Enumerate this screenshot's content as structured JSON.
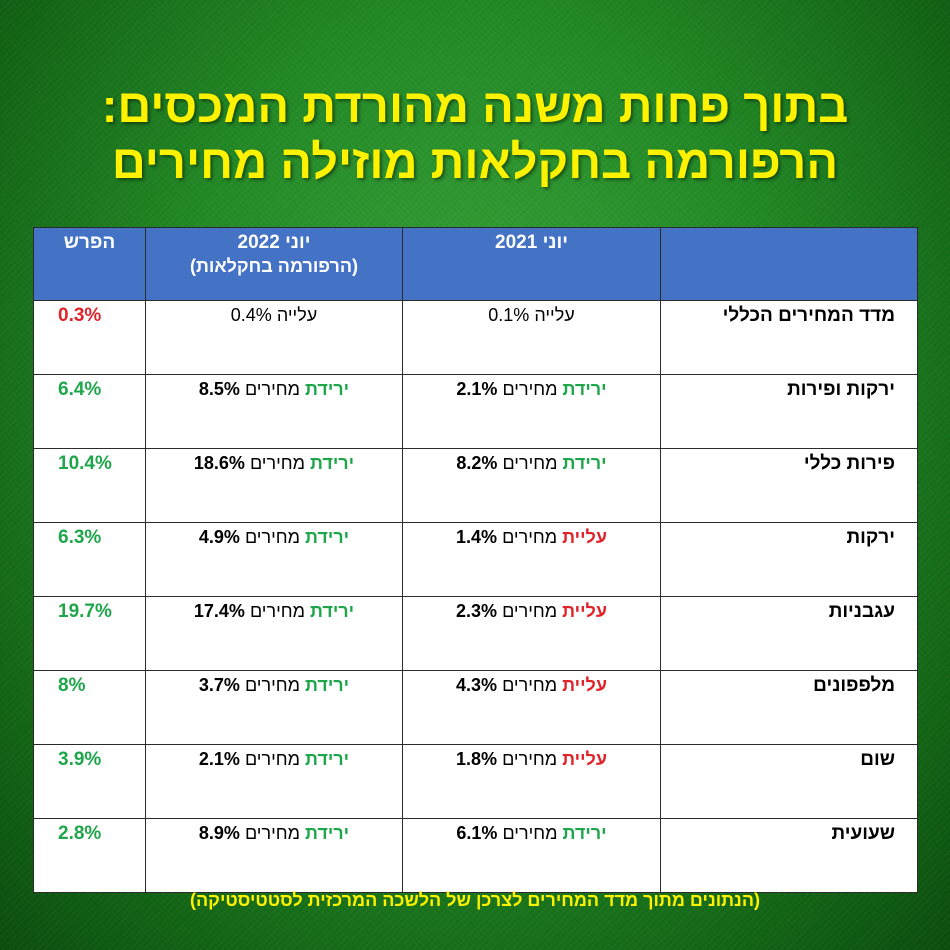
{
  "headline": {
    "line1": "בתוך פחות משנה מהורדת המכסים:",
    "line2": "הרפורמה בחקלאות מוזילה מחירים"
  },
  "table": {
    "headers": {
      "category": "",
      "june2021": "יוני 2021",
      "june2022": "יוני 2022",
      "june2022_sub": "(הרפורמה בחקלאות)",
      "difference": "הפרש"
    },
    "rows": [
      {
        "category": "מדד המחירים הכללי",
        "y2021": {
          "word": "עלייה",
          "value": "0.1%",
          "tone": "plain"
        },
        "y2022": {
          "word": "עלייה",
          "value": "0.4%",
          "tone": "plain"
        },
        "difference": "0.3%",
        "difference_tone": "red"
      },
      {
        "category": "ירקות ופירות",
        "y2021": {
          "word": "ירידת",
          "mid": "מחירים",
          "value": "2.1%",
          "tone": "green"
        },
        "y2022": {
          "word": "ירידת",
          "mid": "מחירים",
          "value": "8.5%",
          "tone": "green"
        },
        "difference": "6.4%",
        "difference_tone": "green"
      },
      {
        "category": "פירות כללי",
        "y2021": {
          "word": "ירידת",
          "mid": "מחירים",
          "value": "8.2%",
          "tone": "green"
        },
        "y2022": {
          "word": "ירידת",
          "mid": "מחירים",
          "value": "18.6%",
          "tone": "green"
        },
        "difference": "10.4%",
        "difference_tone": "green"
      },
      {
        "category": "ירקות",
        "y2021": {
          "word": "עליית",
          "mid": "מחירים",
          "value": "1.4%",
          "tone": "red"
        },
        "y2022": {
          "word": "ירידת",
          "mid": "מחירים",
          "value": "4.9%",
          "tone": "green"
        },
        "difference": "6.3%",
        "difference_tone": "green"
      },
      {
        "category": "עגבניות",
        "y2021": {
          "word": "עליית",
          "mid": "מחירים",
          "value": "2.3%",
          "tone": "red"
        },
        "y2022": {
          "word": "ירידת",
          "mid": "מחירים",
          "value": "17.4%",
          "tone": "green"
        },
        "difference": "19.7%",
        "difference_tone": "green"
      },
      {
        "category": "מלפפונים",
        "y2021": {
          "word": "עליית",
          "mid": "מחירים",
          "value": "4.3%",
          "tone": "red"
        },
        "y2022": {
          "word": "ירידת",
          "mid": "מחירים",
          "value": "3.7%",
          "tone": "green"
        },
        "difference": "8%",
        "difference_tone": "green"
      },
      {
        "category": "שום",
        "y2021": {
          "word": "עליית",
          "mid": "מחירים",
          "value": "1.8%",
          "tone": "red"
        },
        "y2022": {
          "word": "ירידת",
          "mid": "מחירים",
          "value": "2.1%",
          "tone": "green"
        },
        "difference": "3.9%",
        "difference_tone": "green"
      },
      {
        "category": "שעועית",
        "y2021": {
          "word": "ירידת",
          "mid": "מחירים",
          "value": "6.1%",
          "tone": "green"
        },
        "y2022": {
          "word": "ירידת",
          "mid": "מחירים",
          "value": "8.9%",
          "tone": "green"
        },
        "difference": "2.8%",
        "difference_tone": "green"
      }
    ]
  },
  "footnote": "(הנתונים מתוך מדד המחירים לצרכן של הלשכה המרכזית לסטטיסטיקה)",
  "colors": {
    "headline": "#fff200",
    "header_bg": "#4472c4",
    "green_text": "#1ea64b",
    "red_text": "#e0232a"
  }
}
